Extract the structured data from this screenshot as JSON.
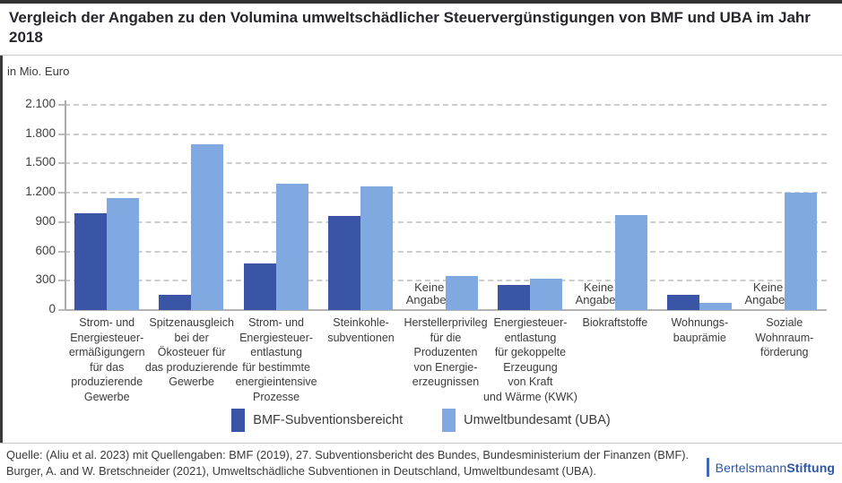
{
  "header": {
    "title": "Vergleich der Angaben zu den Volumina umweltschädlicher Steuervergünstigungen von BMF und UBA im Jahr 2018"
  },
  "chart": {
    "unit_label": "in Mio. Euro"
  },
  "chart_data": {
    "type": "bar",
    "title": "Vergleich der Angaben zu den Volumina umweltschädlicher Steuervergünstigungen von BMF und UBA im Jahr 2018",
    "ylabel": "in Mio. Euro",
    "ylim": [
      0,
      2100
    ],
    "yticks": [
      0,
      300,
      600,
      900,
      1200,
      1500,
      1800,
      2100
    ],
    "ytick_labels": [
      "0",
      "300",
      "600",
      "900",
      "1.200",
      "1.500",
      "1.800",
      "2.100"
    ],
    "grid": "horizontal dashed",
    "legend_position": "bottom-center",
    "categories": [
      "Strom- und Energiesteuer-ermäßigungern für das produzierende Gewerbe",
      "Spitzenausgleich bei der Ökosteuer für das produzierende Gewerbe",
      "Strom- und Energiesteuer-entlastung für bestimmte energieintensive Prozesse",
      "Steinkohle-subventionen",
      "Herstellerprivileg für die Produzenten von Energie-erzeugnissen",
      "Energiesteuer-entlastung für gekoppelte Erzeugung von Kraft und Wärme (KWK)",
      "Biokraftstoffe",
      "Wohnungs-bauprämie",
      "Soziale Wohnraum-förderung"
    ],
    "category_label_lines": [
      [
        "Strom- und",
        "Energiesteuer-",
        "ermäßigungern",
        "für das",
        "produzierende",
        "Gewerbe"
      ],
      [
        "Spitzenausgleich",
        "bei der",
        "Ökosteuer für",
        "das produzierende",
        "Gewerbe"
      ],
      [
        "Strom- und",
        "Energiesteuer-",
        "entlastung",
        "für bestimmte",
        "energieintensive",
        "Prozesse"
      ],
      [
        "Steinkohle-",
        "subventionen"
      ],
      [
        "Herstellerprivileg",
        "für die",
        "Produzenten",
        "von Energie-",
        "erzeugnissen"
      ],
      [
        "Energiesteuer-",
        "entlastung",
        "für gekoppelte",
        "Erzeugung",
        "von Kraft",
        "und Wärme (KWK)"
      ],
      [
        "Biokraftstoffe"
      ],
      [
        "Wohnungs-",
        "bauprämie"
      ],
      [
        "Soziale",
        "Wohnraum-",
        "förderung"
      ]
    ],
    "series": [
      {
        "name": "BMF-Subventionsbereicht",
        "color": "#3a55a6",
        "values": [
          990,
          160,
          480,
          960,
          null,
          260,
          null,
          160,
          null
        ]
      },
      {
        "name": "Umweltbundesamt (UBA)",
        "color": "#7fa9e0",
        "values": [
          1150,
          1700,
          1290,
          1270,
          350,
          320,
          970,
          75,
          1200
        ]
      }
    ],
    "no_data_label": "Keine Angaben",
    "no_data_lines": [
      "Keine",
      "Angaben"
    ]
  },
  "footer": {
    "source_line1": "Quelle: (Aliu et al. 2023) mit Quellengaben: BMF (2019), 27. Subventionsbericht des Bundes, Bundesministerium der Finanzen (BMF).",
    "source_line2": "Burger, A. and W. Bretschneider (2021), Umweltschädliche Subventionen in Deutschland, Umweltbundesamt (UBA).",
    "logo": {
      "text_regular": "Bertelsmann",
      "text_bold": "Stiftung",
      "text_color": "#2b55a4",
      "bar_color": "#3f69b3"
    }
  }
}
